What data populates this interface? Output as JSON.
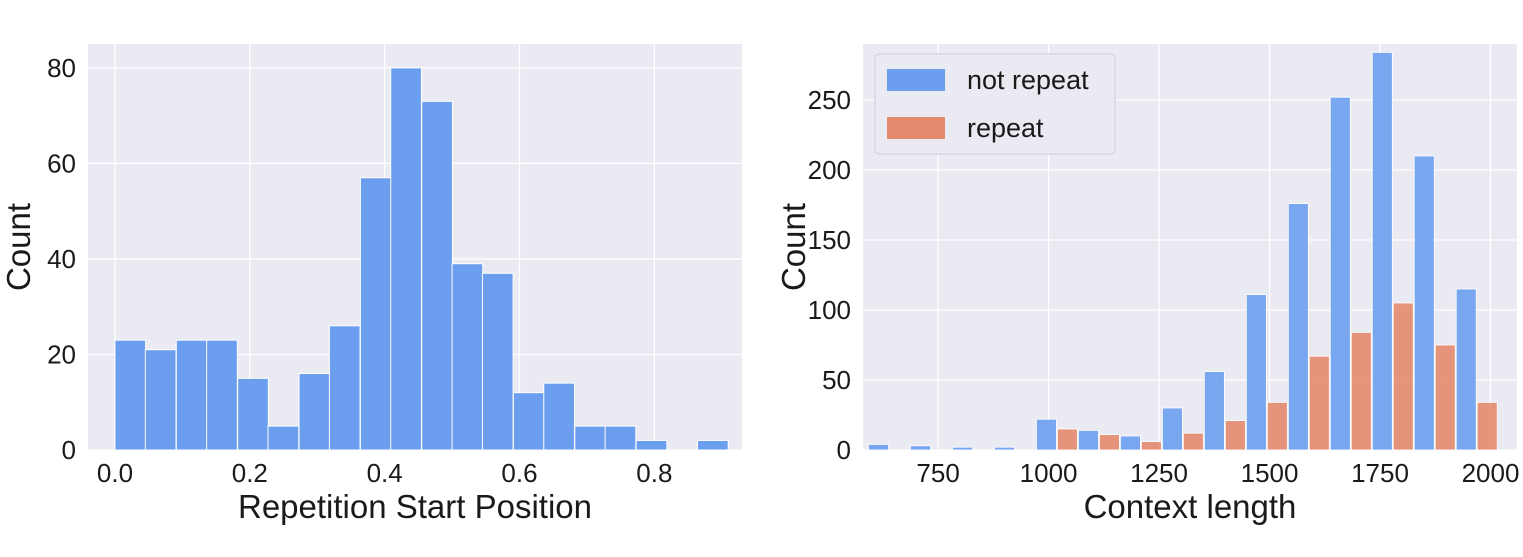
{
  "chart_data": [
    {
      "type": "bar",
      "xlabel": "Repetition Start Position",
      "ylabel": "Count",
      "xlim": [
        -0.04,
        0.93
      ],
      "ylim": [
        0,
        85
      ],
      "xticks": [
        0.0,
        0.2,
        0.4,
        0.6,
        0.8
      ],
      "xtick_labels": [
        "0.0",
        "0.2",
        "0.4",
        "0.6",
        "0.8"
      ],
      "yticks": [
        0,
        20,
        40,
        60,
        80
      ],
      "ytick_labels": [
        "0",
        "20",
        "40",
        "60",
        "80"
      ],
      "grid": true,
      "bar_color": "#6b9eee",
      "bin_width": 0.0455,
      "bins": [
        {
          "x": 0.0,
          "count": 23
        },
        {
          "x": 0.045,
          "count": 21
        },
        {
          "x": 0.091,
          "count": 23
        },
        {
          "x": 0.136,
          "count": 23
        },
        {
          "x": 0.182,
          "count": 15
        },
        {
          "x": 0.227,
          "count": 5
        },
        {
          "x": 0.273,
          "count": 16
        },
        {
          "x": 0.318,
          "count": 26
        },
        {
          "x": 0.364,
          "count": 57
        },
        {
          "x": 0.409,
          "count": 80
        },
        {
          "x": 0.455,
          "count": 73
        },
        {
          "x": 0.5,
          "count": 39
        },
        {
          "x": 0.545,
          "count": 37
        },
        {
          "x": 0.591,
          "count": 12
        },
        {
          "x": 0.636,
          "count": 14
        },
        {
          "x": 0.682,
          "count": 5
        },
        {
          "x": 0.727,
          "count": 5
        },
        {
          "x": 0.773,
          "count": 2
        },
        {
          "x": 0.818,
          "count": 0
        },
        {
          "x": 0.864,
          "count": 2
        }
      ]
    },
    {
      "type": "bar",
      "xlabel": "Context length",
      "ylabel": "Count",
      "xlim": [
        580,
        2060
      ],
      "ylim": [
        0,
        290
      ],
      "xticks": [
        750,
        1000,
        1250,
        1500,
        1750,
        2000
      ],
      "xtick_labels": [
        "750",
        "1000",
        "1250",
        "1500",
        "1750",
        "2000"
      ],
      "yticks": [
        0,
        50,
        100,
        150,
        200,
        250
      ],
      "ytick_labels": [
        "0",
        "50",
        "100",
        "150",
        "200",
        "250"
      ],
      "grid": true,
      "legend_position": "top-left",
      "bin_width": 95,
      "series": [
        {
          "name": "not repeat",
          "color": "#6b9eee",
          "values": [
            {
              "x": 640,
              "count": 4
            },
            {
              "x": 735,
              "count": 3
            },
            {
              "x": 830,
              "count": 2
            },
            {
              "x": 925,
              "count": 2
            },
            {
              "x": 1020,
              "count": 22
            },
            {
              "x": 1115,
              "count": 14
            },
            {
              "x": 1210,
              "count": 10
            },
            {
              "x": 1305,
              "count": 30
            },
            {
              "x": 1400,
              "count": 56
            },
            {
              "x": 1495,
              "count": 111
            },
            {
              "x": 1590,
              "count": 176
            },
            {
              "x": 1685,
              "count": 252
            },
            {
              "x": 1780,
              "count": 284
            },
            {
              "x": 1875,
              "count": 210
            },
            {
              "x": 1970,
              "count": 115
            }
          ]
        },
        {
          "name": "repeat",
          "color": "#e48b6e",
          "values": [
            {
              "x": 640,
              "count": 0
            },
            {
              "x": 735,
              "count": 0
            },
            {
              "x": 830,
              "count": 0
            },
            {
              "x": 925,
              "count": 0
            },
            {
              "x": 1020,
              "count": 15
            },
            {
              "x": 1115,
              "count": 11
            },
            {
              "x": 1210,
              "count": 6
            },
            {
              "x": 1305,
              "count": 12
            },
            {
              "x": 1400,
              "count": 21
            },
            {
              "x": 1495,
              "count": 34
            },
            {
              "x": 1590,
              "count": 67
            },
            {
              "x": 1685,
              "count": 84
            },
            {
              "x": 1780,
              "count": 105
            },
            {
              "x": 1875,
              "count": 75
            },
            {
              "x": 1970,
              "count": 34
            }
          ]
        }
      ]
    }
  ]
}
